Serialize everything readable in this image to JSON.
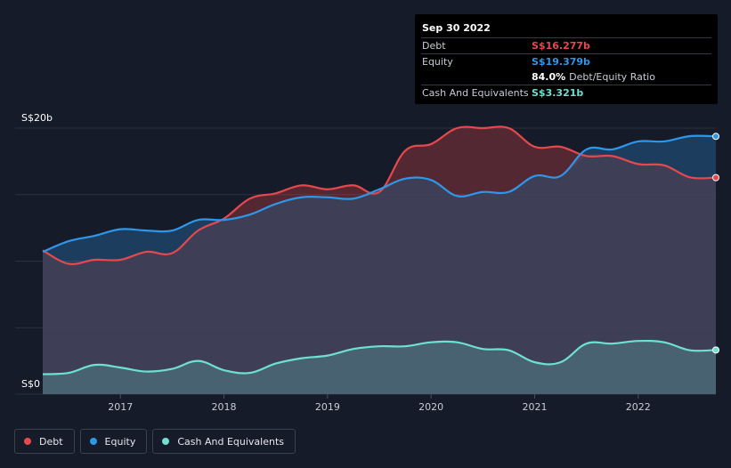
{
  "colors": {
    "debt": "#e5484d",
    "equity": "#2f96e8",
    "cash": "#6ee0d2",
    "grid": "#2c3240",
    "overlay": "#3a3f57"
  },
  "tooltip": {
    "date": "Sep 30 2022",
    "debt_label": "Debt",
    "debt_value": "S$16.277b",
    "equity_label": "Equity",
    "equity_value": "S$19.379b",
    "ratio_value": "84.0%",
    "ratio_label": "Debt/Equity Ratio",
    "cash_label": "Cash And Equivalents",
    "cash_value": "S$3.321b"
  },
  "legend": [
    {
      "label": "Debt",
      "color": "#e5484d"
    },
    {
      "label": "Equity",
      "color": "#2f96e8"
    },
    {
      "label": "Cash And Equivalents",
      "color": "#6ee0d2"
    }
  ],
  "chart_data": {
    "type": "area",
    "y_tick_labels": [
      "S$0",
      "S$20b"
    ],
    "ylim": [
      0,
      20
    ],
    "xlim": [
      2016.25,
      2022.75
    ],
    "x_tick_labels": [
      "2017",
      "2018",
      "2019",
      "2020",
      "2021",
      "2022"
    ],
    "x_ticks": [
      2017,
      2018,
      2019,
      2020,
      2021,
      2022
    ],
    "grid": true,
    "legend_position": "bottom-left",
    "series": [
      {
        "name": "Debt",
        "x": [
          2016.25,
          2016.5,
          2016.75,
          2017.0,
          2017.25,
          2017.5,
          2017.75,
          2018.0,
          2018.25,
          2018.5,
          2018.75,
          2019.0,
          2019.25,
          2019.5,
          2019.75,
          2020.0,
          2020.25,
          2020.5,
          2020.75,
          2021.0,
          2021.25,
          2021.5,
          2021.75,
          2022.0,
          2022.25,
          2022.5,
          2022.75
        ],
        "values": [
          10.8,
          9.8,
          10.1,
          10.1,
          10.7,
          10.6,
          12.3,
          13.2,
          14.7,
          15.1,
          15.7,
          15.4,
          15.7,
          15.2,
          18.3,
          18.8,
          20.0,
          20.0,
          20.0,
          18.6,
          18.6,
          17.9,
          17.9,
          17.3,
          17.2,
          16.3,
          16.28
        ]
      },
      {
        "name": "Equity",
        "x": [
          2016.25,
          2016.5,
          2016.75,
          2017.0,
          2017.25,
          2017.5,
          2017.75,
          2018.0,
          2018.25,
          2018.5,
          2018.75,
          2019.0,
          2019.25,
          2019.5,
          2019.75,
          2020.0,
          2020.25,
          2020.5,
          2020.75,
          2021.0,
          2021.25,
          2021.5,
          2021.75,
          2022.0,
          2022.25,
          2022.5,
          2022.75
        ],
        "values": [
          10.7,
          11.5,
          11.9,
          12.4,
          12.3,
          12.3,
          13.1,
          13.1,
          13.5,
          14.3,
          14.8,
          14.8,
          14.7,
          15.4,
          16.2,
          16.1,
          14.9,
          15.2,
          15.2,
          16.4,
          16.4,
          18.4,
          18.4,
          19.0,
          19.0,
          19.4,
          19.38
        ]
      },
      {
        "name": "Cash And Equivalents",
        "x": [
          2016.25,
          2016.5,
          2016.75,
          2017.0,
          2017.25,
          2017.5,
          2017.75,
          2018.0,
          2018.25,
          2018.5,
          2018.75,
          2019.0,
          2019.25,
          2019.5,
          2019.75,
          2020.0,
          2020.25,
          2020.5,
          2020.75,
          2021.0,
          2021.25,
          2021.5,
          2021.75,
          2022.0,
          2022.25,
          2022.5,
          2022.75
        ],
        "values": [
          1.5,
          1.6,
          2.2,
          2.0,
          1.7,
          1.9,
          2.5,
          1.8,
          1.6,
          2.3,
          2.7,
          2.9,
          3.4,
          3.6,
          3.6,
          3.9,
          3.9,
          3.4,
          3.3,
          2.4,
          2.4,
          3.8,
          3.8,
          4.0,
          3.9,
          3.3,
          3.32
        ]
      }
    ]
  }
}
